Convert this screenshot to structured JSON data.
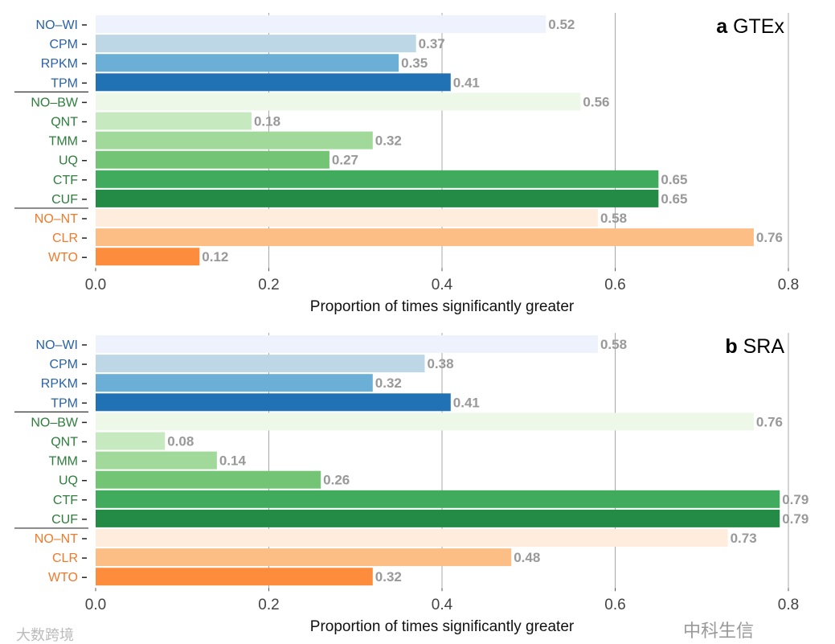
{
  "chart_data": [
    {
      "type": "bar",
      "orientation": "horizontal",
      "panel_letter": "a",
      "title": "GTEx",
      "xlabel": "Proportion of times significantly greater",
      "xlim": [
        0,
        0.8
      ],
      "xticks": [
        "0.0",
        "0.2",
        "0.4",
        "0.6",
        "0.8"
      ],
      "grid": "vertical",
      "categories": [
        "NO–WI",
        "CPM",
        "RPKM",
        "TPM",
        "NO–BW",
        "QNT",
        "TMM",
        "UQ",
        "CTF",
        "CUF",
        "NO–NT",
        "CLR",
        "WTO"
      ],
      "values": [
        0.52,
        0.37,
        0.35,
        0.41,
        0.56,
        0.18,
        0.32,
        0.27,
        0.65,
        0.65,
        0.58,
        0.76,
        0.12
      ],
      "value_labels": [
        "0.52",
        "0.37",
        "0.35",
        "0.41",
        "0.56",
        "0.18",
        "0.32",
        "0.27",
        "0.65",
        "0.65",
        "0.58",
        "0.76",
        "0.12"
      ]
    },
    {
      "type": "bar",
      "orientation": "horizontal",
      "panel_letter": "b",
      "title": "SRA",
      "xlabel": "Proportion of times significantly greater",
      "xlim": [
        0,
        0.8
      ],
      "xticks": [
        "0.0",
        "0.2",
        "0.4",
        "0.6",
        "0.8"
      ],
      "grid": "vertical",
      "categories": [
        "NO–WI",
        "CPM",
        "RPKM",
        "TPM",
        "NO–BW",
        "QNT",
        "TMM",
        "UQ",
        "CTF",
        "CUF",
        "NO–NT",
        "CLR",
        "WTO"
      ],
      "values": [
        0.58,
        0.38,
        0.32,
        0.41,
        0.76,
        0.08,
        0.14,
        0.26,
        0.79,
        0.79,
        0.73,
        0.48,
        0.32
      ],
      "value_labels": [
        "0.58",
        "0.38",
        "0.32",
        "0.41",
        "0.76",
        "0.08",
        "0.14",
        "0.26",
        "0.79",
        "0.79",
        "0.73",
        "0.48",
        "0.32"
      ]
    }
  ],
  "bar_colors": [
    "#eef2fd",
    "#bdd7e7",
    "#6baed6",
    "#2171b5",
    "#edf8e9",
    "#c7e9c0",
    "#a1d99b",
    "#74c476",
    "#41ab5d",
    "#238b45",
    "#feeddd",
    "#fdbe85",
    "#fd8d3c"
  ],
  "label_colors": [
    "#2a62a8",
    "#2a62a8",
    "#2a62a8",
    "#2a62a8",
    "#2e7d3c",
    "#2e7d3c",
    "#2e7d3c",
    "#2e7d3c",
    "#2e7d3c",
    "#2e7d3c",
    "#f07a2a",
    "#f07a2a",
    "#f07a2a"
  ],
  "value_label_color": "#999999",
  "watermarks": [
    "中科生信",
    "大数跨境"
  ]
}
